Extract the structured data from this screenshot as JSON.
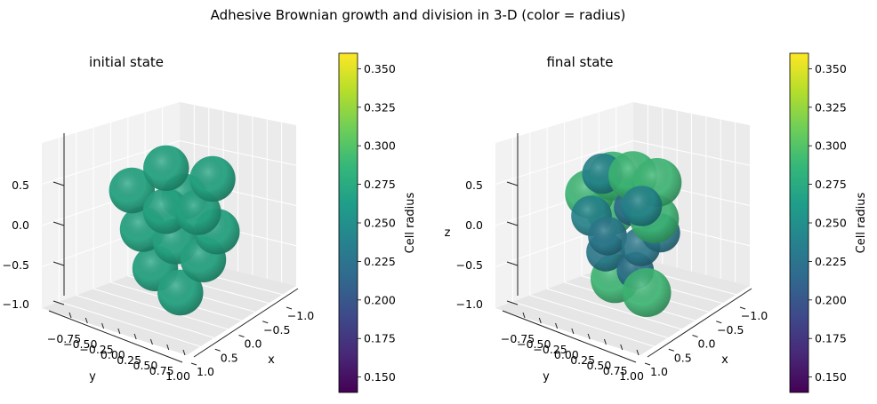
{
  "figure": {
    "title": "Adhesive Brownian growth and division in 3-D (color = radius)"
  },
  "colorbar": {
    "label": "Cell radius",
    "range": [
      0.14,
      0.36
    ],
    "ticks": [
      "0.350",
      "0.325",
      "0.300",
      "0.275",
      "0.250",
      "0.225",
      "0.200",
      "0.175",
      "0.150"
    ],
    "colormap": [
      "#440154",
      "#482878",
      "#3e4989",
      "#31688e",
      "#26828e",
      "#1f9e89",
      "#35b779",
      "#6ece58",
      "#b5de2b",
      "#fde725"
    ]
  },
  "chart_data": [
    {
      "type": "scatter",
      "title": "initial state",
      "xlabel": "x",
      "ylabel": "y",
      "zlabel": "",
      "x_ticks": [
        "1.0",
        "0.5",
        "0.0",
        "−0.5",
        "−1.0"
      ],
      "y_ticks": [
        "−0.75",
        "−0.50",
        "−0.25",
        "0.00",
        "0.25",
        "0.50",
        "0.75",
        "1.00"
      ],
      "z_ticks": [
        "0.5",
        "0.0",
        "−0.5",
        "−1.0"
      ],
      "xlim": [
        -1.2,
        1.2
      ],
      "ylim": [
        -0.9,
        1.1
      ],
      "zlim": [
        -1.1,
        0.9
      ],
      "grid": true,
      "legend": "none",
      "color_metric": "radius",
      "cells": [
        {
          "x": 0.55,
          "y": -0.55,
          "z": 0.45,
          "r": 0.27
        },
        {
          "x": -0.15,
          "y": -0.45,
          "z": 0.6,
          "r": 0.27
        },
        {
          "x": -0.6,
          "y": 0.4,
          "z": 0.5,
          "r": 0.27
        },
        {
          "x": 0.1,
          "y": -0.1,
          "z": 0.15,
          "r": 0.27
        },
        {
          "x": 0.55,
          "y": -0.2,
          "z": 0.0,
          "r": 0.27
        },
        {
          "x": -0.45,
          "y": 0.15,
          "z": 0.05,
          "r": 0.27
        },
        {
          "x": 0.2,
          "y": 0.35,
          "z": -0.15,
          "r": 0.27
        },
        {
          "x": 0.55,
          "y": 0.2,
          "z": -0.45,
          "r": 0.27
        },
        {
          "x": -0.25,
          "y": 0.6,
          "z": -0.45,
          "r": 0.27
        },
        {
          "x": 0.0,
          "y": 0.35,
          "z": 0.4,
          "r": 0.27
        },
        {
          "x": -0.45,
          "y": 0.75,
          "z": -0.1,
          "r": 0.27
        },
        {
          "x": 0.3,
          "y": 0.65,
          "z": -0.75,
          "r": 0.27
        }
      ]
    },
    {
      "type": "scatter",
      "title": "final state",
      "xlabel": "x",
      "ylabel": "y",
      "zlabel": "z",
      "x_ticks": [
        "1.0",
        "0.5",
        "0.0",
        "−0.5",
        "−1.0"
      ],
      "y_ticks": [
        "−0.75",
        "−0.50",
        "−0.25",
        "0.00",
        "0.25",
        "0.50",
        "0.75",
        "1.00"
      ],
      "z_ticks": [
        "0.5",
        "0.0",
        "−0.5",
        "−1.0"
      ],
      "xlim": [
        -1.2,
        1.2
      ],
      "ylim": [
        -0.9,
        1.1
      ],
      "zlim": [
        -1.1,
        0.9
      ],
      "grid": true,
      "legend": "none",
      "color_metric": "radius",
      "cells": [
        {
          "x": 0.3,
          "y": -0.2,
          "z": -0.15,
          "r": 0.23
        },
        {
          "x": 0.55,
          "y": 0.1,
          "z": -0.25,
          "r": 0.23
        },
        {
          "x": 0.45,
          "y": -0.5,
          "z": 0.1,
          "r": 0.24
        },
        {
          "x": -0.1,
          "y": 0.3,
          "z": -0.3,
          "r": 0.23
        },
        {
          "x": 0.2,
          "y": 0.55,
          "z": -0.5,
          "r": 0.22
        },
        {
          "x": -0.4,
          "y": -0.1,
          "z": 0.1,
          "r": 0.24
        },
        {
          "x": 0.1,
          "y": -0.65,
          "z": 0.55,
          "r": 0.24
        },
        {
          "x": -0.3,
          "y": 0.65,
          "z": -0.1,
          "r": 0.23
        },
        {
          "x": -0.05,
          "y": 0.1,
          "z": 0.2,
          "r": 0.22
        },
        {
          "x": 0.55,
          "y": 0.4,
          "z": -0.55,
          "r": 0.29
        },
        {
          "x": 0.6,
          "y": -0.35,
          "z": 0.45,
          "r": 0.29
        },
        {
          "x": -0.5,
          "y": 0.25,
          "z": 0.45,
          "r": 0.29
        },
        {
          "x": 0.15,
          "y": -0.25,
          "z": 0.6,
          "r": 0.29
        },
        {
          "x": 0.05,
          "y": 0.7,
          "z": -0.8,
          "r": 0.29
        },
        {
          "x": -0.3,
          "y": 0.45,
          "z": 0.05,
          "r": 0.29
        },
        {
          "x": 0.4,
          "y": 0.05,
          "z": 0.25,
          "r": 0.29
        },
        {
          "x": -0.2,
          "y": -0.1,
          "z": 0.55,
          "r": 0.29
        }
      ]
    }
  ]
}
